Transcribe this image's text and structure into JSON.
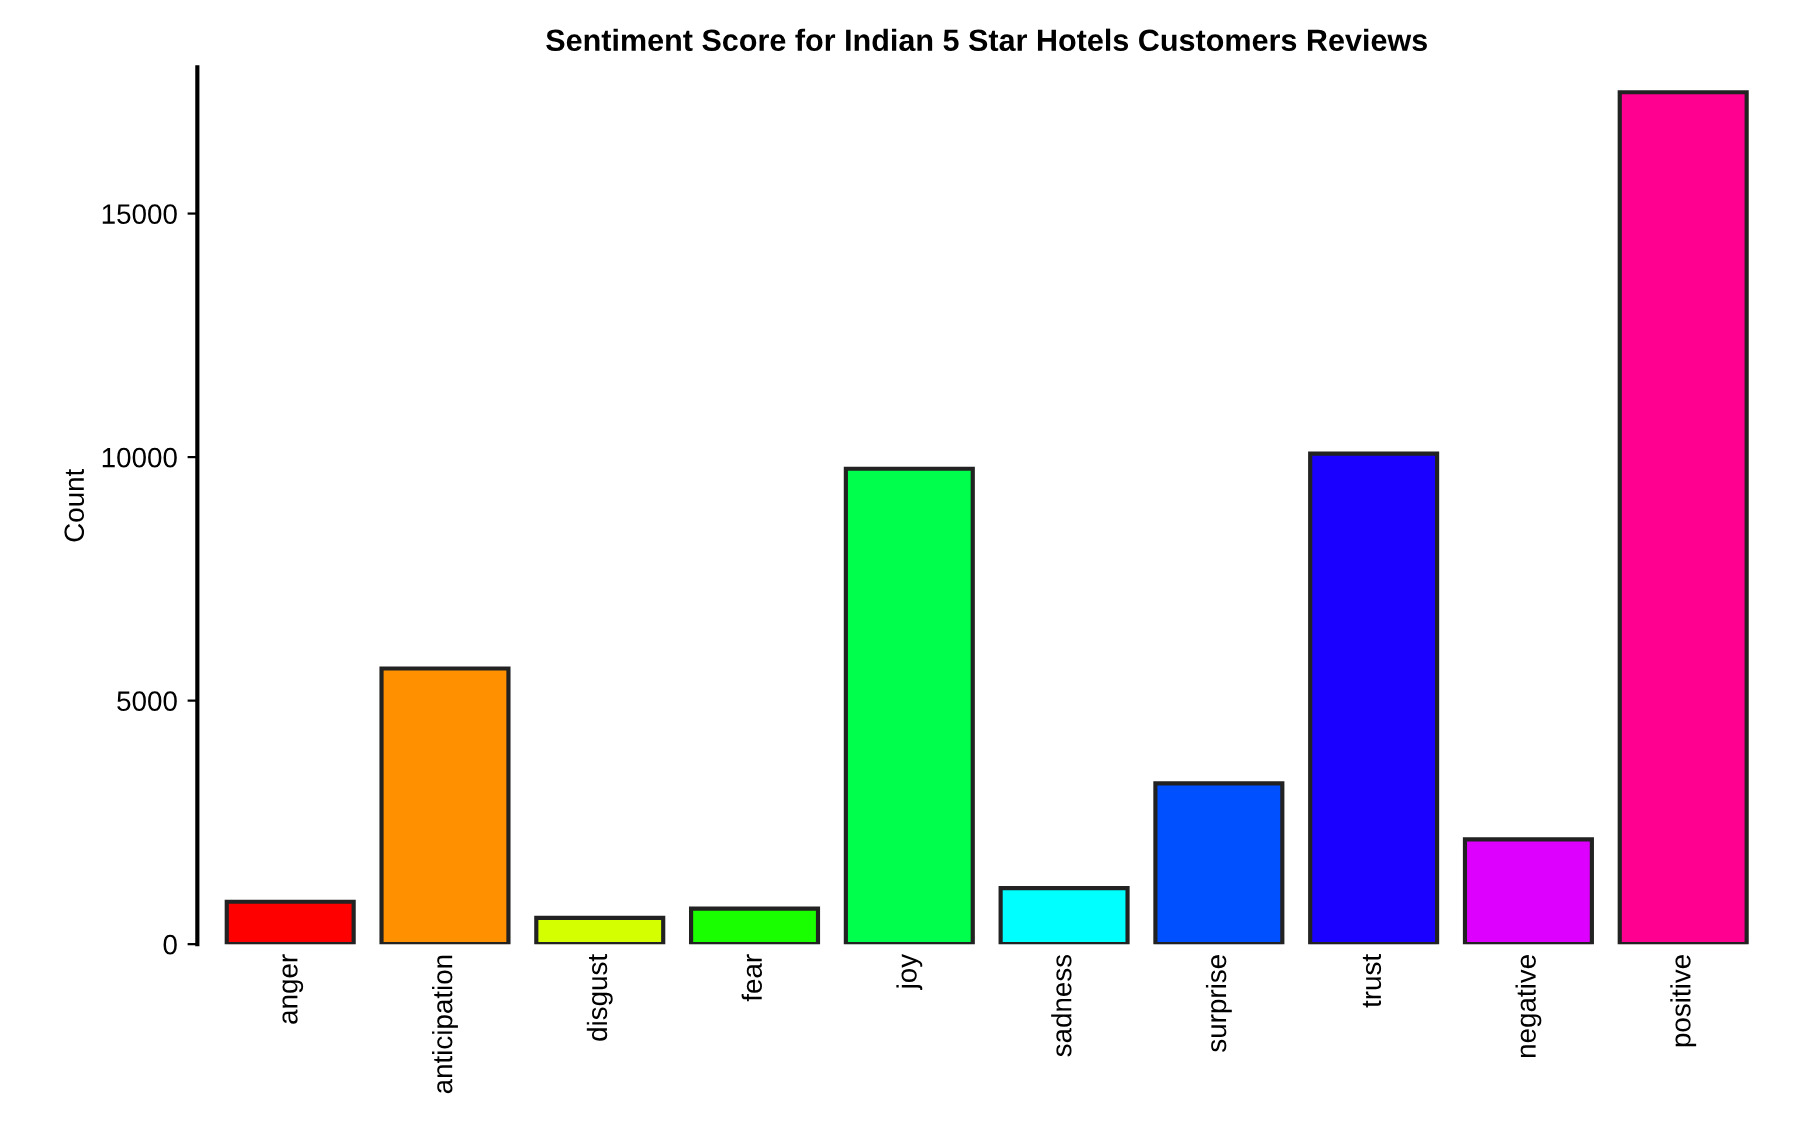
{
  "chart_data": {
    "type": "bar",
    "title": "Sentiment Score for Indian 5 Star Hotels Customers Reviews",
    "ylabel": "Count",
    "categories": [
      "anger",
      "anticipation",
      "disgust",
      "fear",
      "joy",
      "sadness",
      "surprise",
      "trust",
      "negative",
      "positive"
    ],
    "values": [
      870,
      5660,
      540,
      730,
      9760,
      1150,
      3300,
      10070,
      2150,
      17490
    ],
    "colors": [
      "#ff0000",
      "#ff9000",
      "#d4ff00",
      "#1aff00",
      "#00ff4d",
      "#00ffff",
      "#0050ff",
      "#1a00ff",
      "#dd00ff",
      "#ff0090"
    ],
    "ylim": [
      0,
      18000
    ],
    "yticks": [
      0,
      5000,
      10000,
      15000
    ],
    "grid": false,
    "legend": false
  }
}
